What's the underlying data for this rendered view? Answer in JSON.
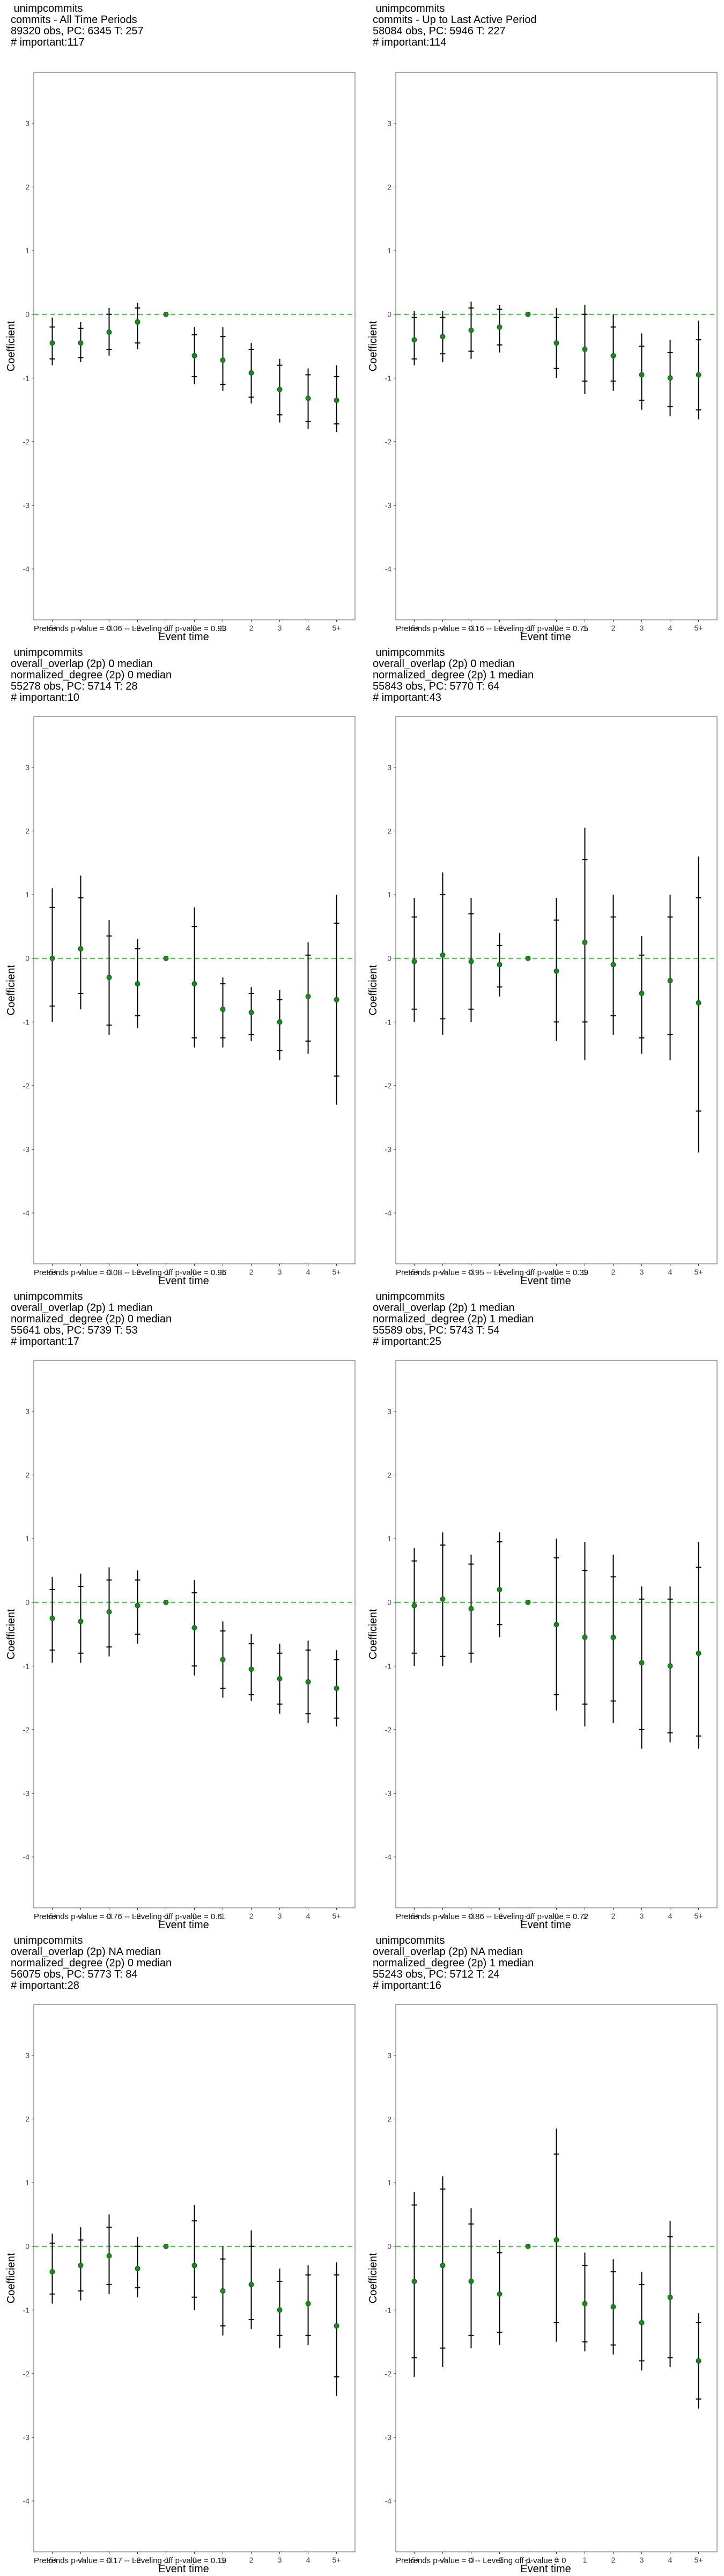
{
  "axes": {
    "xlabel": "Event time",
    "ylabel": "Coefficient",
    "ylim": [
      -4.8,
      3.8
    ],
    "yticks": [
      -4,
      -3,
      -2,
      -1,
      0,
      1,
      2,
      3
    ],
    "categories": [
      "-5+",
      "-4",
      "-3",
      "-2",
      "-1",
      "0",
      "1",
      "2",
      "3",
      "4",
      "5+"
    ],
    "grid": false,
    "reference_line": 0,
    "colors": {
      "point": "#1a8a1a",
      "interval": "#000000",
      "reference": "#33cc33",
      "frame": "#555555"
    }
  },
  "chart_data": [
    {
      "type": "scatter",
      "title_lines": [
        "unimpcommits",
        "commits - All Time Periods",
        "89320 obs, PC: 6345 T: 257",
        "# important:117"
      ],
      "footnote": "Pretrends p-value = 0.06 -- Leveling off p-value = 0.93",
      "categories": [
        "-5+",
        "-4",
        "-3",
        "-2",
        "-1",
        "0",
        "1",
        "2",
        "3",
        "4",
        "5+"
      ],
      "values": [
        -0.45,
        -0.45,
        -0.28,
        -0.12,
        0,
        -0.65,
        -0.72,
        -0.92,
        -1.18,
        -1.32,
        -1.35
      ],
      "ci_low": [
        -0.8,
        -0.75,
        -0.65,
        -0.55,
        0,
        -1.1,
        -1.2,
        -1.4,
        -1.7,
        -1.8,
        -1.85
      ],
      "ci_high": [
        -0.05,
        -0.12,
        0.1,
        0.18,
        0,
        -0.2,
        -0.2,
        -0.45,
        -0.7,
        -0.85,
        -0.8
      ],
      "ci_inner_low": [
        -0.7,
        -0.68,
        -0.55,
        -0.45,
        0,
        -0.98,
        -1.1,
        -1.3,
        -1.58,
        -1.68,
        -1.72
      ],
      "ci_inner_high": [
        -0.2,
        -0.22,
        0.0,
        0.1,
        0,
        -0.32,
        -0.35,
        -0.55,
        -0.8,
        -0.95,
        -0.98
      ]
    },
    {
      "type": "scatter",
      "title_lines": [
        "unimpcommits",
        "commits - Up to Last Active Period",
        "58084 obs, PC: 5946 T: 227",
        "# important:114"
      ],
      "footnote": "Pretrends p-value = 0.16 -- Leveling off p-value = 0.75",
      "categories": [
        "-5+",
        "-4",
        "-3",
        "-2",
        "-1",
        "0",
        "1",
        "2",
        "3",
        "4",
        "5+"
      ],
      "values": [
        -0.4,
        -0.35,
        -0.25,
        -0.2,
        0,
        -0.45,
        -0.55,
        -0.65,
        -0.95,
        -1.0,
        -0.95
      ],
      "ci_low": [
        -0.8,
        -0.75,
        -0.7,
        -0.6,
        0,
        -1.0,
        -1.25,
        -1.2,
        -1.5,
        -1.6,
        -1.65
      ],
      "ci_high": [
        0.05,
        0.05,
        0.2,
        0.15,
        0,
        0.1,
        0.15,
        0.0,
        -0.3,
        -0.4,
        -0.1
      ],
      "ci_inner_low": [
        -0.7,
        -0.62,
        -0.58,
        -0.48,
        0,
        -0.85,
        -1.05,
        -1.05,
        -1.35,
        -1.45,
        -1.5
      ],
      "ci_inner_high": [
        -0.05,
        -0.05,
        0.1,
        0.08,
        0,
        -0.05,
        0.0,
        -0.2,
        -0.5,
        -0.6,
        -0.4
      ]
    },
    {
      "type": "scatter",
      "title_lines": [
        "unimpcommits",
        "overall_overlap (2p) 0 median",
        "normalized_degree (2p) 0 median",
        "55278 obs, PC: 5714 T: 28",
        "# important:10"
      ],
      "footnote": "Pretrends p-value = 0.08 -- Leveling off p-value = 0.96",
      "categories": [
        "-5+",
        "-4",
        "-3",
        "-2",
        "-1",
        "0",
        "1",
        "2",
        "3",
        "4",
        "5+"
      ],
      "values": [
        0.0,
        0.15,
        -0.3,
        -0.4,
        0,
        -0.4,
        -0.8,
        -0.85,
        -1.0,
        -0.6,
        -0.65
      ],
      "ci_low": [
        -1.0,
        -0.8,
        -1.2,
        -1.1,
        0,
        -1.4,
        -1.4,
        -1.3,
        -1.6,
        -1.5,
        -2.3
      ],
      "ci_high": [
        1.1,
        1.3,
        0.6,
        0.3,
        0,
        0.8,
        -0.3,
        -0.45,
        -0.5,
        0.25,
        1.0
      ],
      "ci_inner_low": [
        -0.75,
        -0.55,
        -1.05,
        -0.9,
        0,
        -1.25,
        -1.25,
        -1.2,
        -1.45,
        -1.3,
        -1.85
      ],
      "ci_inner_high": [
        0.8,
        0.95,
        0.35,
        0.15,
        0,
        0.5,
        -0.4,
        -0.55,
        -0.65,
        0.05,
        0.55
      ]
    },
    {
      "type": "scatter",
      "title_lines": [
        "unimpcommits",
        "overall_overlap (2p) 0 median",
        "normalized_degree (2p) 1 median",
        "55843 obs, PC: 5770 T: 64",
        "# important:43"
      ],
      "footnote": "Pretrends p-value = 0.95 -- Leveling off p-value = 0.39",
      "categories": [
        "-5+",
        "-4",
        "-3",
        "-2",
        "-1",
        "0",
        "1",
        "2",
        "3",
        "4",
        "5+"
      ],
      "values": [
        -0.05,
        0.05,
        -0.05,
        -0.1,
        0,
        -0.2,
        0.25,
        -0.1,
        -0.55,
        -0.35,
        -0.7
      ],
      "ci_low": [
        -1.0,
        -1.2,
        -1.0,
        -0.6,
        0,
        -1.3,
        -1.6,
        -1.2,
        -1.5,
        -1.6,
        -3.05
      ],
      "ci_high": [
        0.95,
        1.35,
        0.95,
        0.4,
        0,
        0.95,
        2.05,
        1.0,
        0.35,
        1.0,
        1.6
      ],
      "ci_inner_low": [
        -0.8,
        -0.95,
        -0.8,
        -0.45,
        0,
        -1.0,
        -1.0,
        -0.9,
        -1.25,
        -1.2,
        -2.4
      ],
      "ci_inner_high": [
        0.65,
        1.0,
        0.7,
        0.2,
        0,
        0.6,
        1.55,
        0.65,
        0.05,
        0.65,
        0.95
      ]
    },
    {
      "type": "scatter",
      "title_lines": [
        "unimpcommits",
        "overall_overlap (2p) 1 median",
        "normalized_degree (2p) 0 median",
        "55641 obs, PC: 5739 T: 53",
        "# important:17"
      ],
      "footnote": "Pretrends p-value = 0.76 -- Leveling off p-value = 0.6",
      "categories": [
        "-5+",
        "-4",
        "-3",
        "-2",
        "-1",
        "0",
        "1",
        "2",
        "3",
        "4",
        "5+"
      ],
      "values": [
        -0.25,
        -0.3,
        -0.15,
        -0.05,
        0,
        -0.4,
        -0.9,
        -1.05,
        -1.2,
        -1.25,
        -1.35
      ],
      "ci_low": [
        -0.95,
        -0.95,
        -0.85,
        -0.65,
        0,
        -1.15,
        -1.5,
        -1.55,
        -1.75,
        -1.9,
        -1.95
      ],
      "ci_high": [
        0.4,
        0.45,
        0.55,
        0.5,
        0,
        0.35,
        -0.3,
        -0.5,
        -0.65,
        -0.6,
        -0.75
      ],
      "ci_inner_low": [
        -0.75,
        -0.8,
        -0.7,
        -0.5,
        0,
        -1.0,
        -1.35,
        -1.45,
        -1.6,
        -1.75,
        -1.82
      ],
      "ci_inner_high": [
        0.2,
        0.25,
        0.35,
        0.35,
        0,
        0.15,
        -0.45,
        -0.65,
        -0.8,
        -0.75,
        -0.9
      ]
    },
    {
      "type": "scatter",
      "title_lines": [
        "unimpcommits",
        "overall_overlap (2p) 1 median",
        "normalized_degree (2p) 1 median",
        "55589 obs, PC: 5743 T: 54",
        "# important:25"
      ],
      "footnote": "Pretrends p-value = 0.86 -- Leveling off p-value = 0.72",
      "categories": [
        "-5+",
        "-4",
        "-3",
        "-2",
        "-1",
        "0",
        "1",
        "2",
        "3",
        "4",
        "5+"
      ],
      "values": [
        -0.05,
        0.05,
        -0.1,
        0.2,
        0,
        -0.35,
        -0.55,
        -0.55,
        -0.95,
        -1.0,
        -0.8
      ],
      "ci_low": [
        -1.0,
        -1.0,
        -0.95,
        -0.55,
        0,
        -1.7,
        -1.95,
        -1.9,
        -2.3,
        -2.2,
        -2.3
      ],
      "ci_high": [
        0.85,
        1.1,
        0.75,
        1.1,
        0,
        1.0,
        0.95,
        0.75,
        0.25,
        0.25,
        0.95
      ],
      "ci_inner_low": [
        -0.8,
        -0.85,
        -0.8,
        -0.35,
        0,
        -1.45,
        -1.6,
        -1.55,
        -2.0,
        -2.05,
        -2.1
      ],
      "ci_inner_high": [
        0.65,
        0.9,
        0.6,
        0.95,
        0,
        0.7,
        0.5,
        0.4,
        0.05,
        0.05,
        0.55
      ]
    },
    {
      "type": "scatter",
      "title_lines": [
        "unimpcommits",
        "overall_overlap (2p) NA median",
        "normalized_degree (2p) 0 median",
        "56075 obs, PC: 5773 T: 84",
        "# important:28"
      ],
      "footnote": "Pretrends p-value = 0.17 -- Leveling off p-value = 0.19",
      "categories": [
        "-5+",
        "-4",
        "-3",
        "-2",
        "-1",
        "0",
        "1",
        "2",
        "3",
        "4",
        "5+"
      ],
      "values": [
        -0.4,
        -0.3,
        -0.15,
        -0.35,
        0,
        -0.3,
        -0.7,
        -0.6,
        -1.0,
        -0.9,
        -1.25
      ],
      "ci_low": [
        -0.9,
        -0.85,
        -0.75,
        -0.8,
        0,
        -1.0,
        -1.4,
        -1.3,
        -1.6,
        -1.55,
        -2.35
      ],
      "ci_high": [
        0.2,
        0.3,
        0.5,
        0.15,
        0,
        0.65,
        0.0,
        0.25,
        -0.35,
        -0.3,
        -0.25
      ],
      "ci_inner_low": [
        -0.75,
        -0.7,
        -0.6,
        -0.65,
        0,
        -0.8,
        -1.25,
        -1.15,
        -1.4,
        -1.4,
        -2.05
      ],
      "ci_inner_high": [
        0.05,
        0.1,
        0.3,
        0.0,
        0,
        0.4,
        -0.2,
        0.0,
        -0.55,
        -0.45,
        -0.45
      ]
    },
    {
      "type": "scatter",
      "title_lines": [
        "unimpcommits",
        "overall_overlap (2p) NA median",
        "normalized_degree (2p) 1 median",
        "55243 obs, PC: 5712 T: 24",
        "# important:16"
      ],
      "footnote": "Pretrends p-value = 0 -- Leveling off p-value = 0",
      "categories": [
        "-5+",
        "-4",
        "-3",
        "-2",
        "-1",
        "0",
        "1",
        "2",
        "3",
        "4",
        "5+"
      ],
      "values": [
        -0.55,
        -0.3,
        -0.55,
        -0.75,
        0,
        0.1,
        -0.9,
        -0.95,
        -1.2,
        -0.8,
        -1.8
      ],
      "ci_low": [
        -2.05,
        -1.9,
        -1.6,
        -1.55,
        0,
        -1.5,
        -1.65,
        -1.7,
        -1.95,
        -1.9,
        -2.55
      ],
      "ci_high": [
        0.85,
        1.1,
        0.6,
        0.1,
        0,
        1.85,
        -0.1,
        -0.2,
        -0.4,
        0.4,
        -1.05
      ],
      "ci_inner_low": [
        -1.75,
        -1.6,
        -1.4,
        -1.35,
        0,
        -1.2,
        -1.5,
        -1.55,
        -1.8,
        -1.75,
        -2.4
      ],
      "ci_inner_high": [
        0.65,
        0.9,
        0.35,
        -0.1,
        0,
        1.45,
        -0.3,
        -0.4,
        -0.6,
        0.15,
        -1.2
      ]
    }
  ]
}
